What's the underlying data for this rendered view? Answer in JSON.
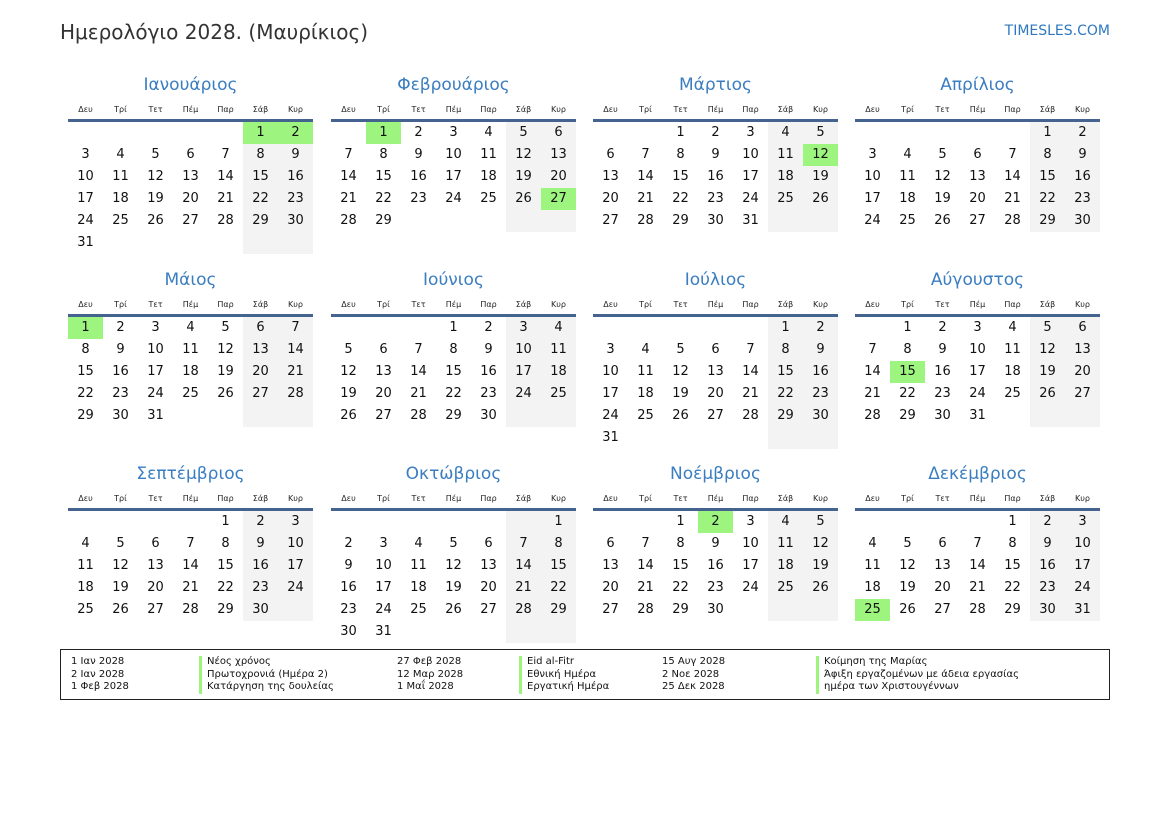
{
  "header": {
    "title": "Ημερολόγιο 2028. (Μαυρίκιος)",
    "site": "TIMESLES.COM"
  },
  "weekdays": [
    "Δευ",
    "Τρί",
    "Τετ",
    "Πέμ",
    "Παρ",
    "Σάβ",
    "Κυρ"
  ],
  "colors": {
    "holiday": "#9df57f",
    "weekend": "#f3f3f3",
    "accent": "#3a7dc0"
  },
  "months": [
    {
      "name": "Ιανουάριος",
      "first_weekday": 6,
      "days": 31,
      "holidays": [
        1,
        2
      ]
    },
    {
      "name": "Φεβρουάριος",
      "first_weekday": 2,
      "days": 29,
      "holidays": [
        1,
        27
      ]
    },
    {
      "name": "Μάρτιος",
      "first_weekday": 3,
      "days": 31,
      "holidays": [
        12
      ]
    },
    {
      "name": "Απρίλιος",
      "first_weekday": 6,
      "days": 30,
      "holidays": []
    },
    {
      "name": "Μάιος",
      "first_weekday": 1,
      "days": 31,
      "holidays": [
        1
      ]
    },
    {
      "name": "Ιούνιος",
      "first_weekday": 4,
      "days": 30,
      "holidays": []
    },
    {
      "name": "Ιούλιος",
      "first_weekday": 6,
      "days": 31,
      "holidays": []
    },
    {
      "name": "Αύγουστος",
      "first_weekday": 2,
      "days": 31,
      "holidays": [
        15
      ]
    },
    {
      "name": "Σεπτέμβριος",
      "first_weekday": 5,
      "days": 30,
      "holidays": []
    },
    {
      "name": "Οκτώβριος",
      "first_weekday": 7,
      "days": 31,
      "holidays": []
    },
    {
      "name": "Νοέμβριος",
      "first_weekday": 3,
      "days": 30,
      "holidays": [
        2
      ]
    },
    {
      "name": "Δεκέμβριος",
      "first_weekday": 5,
      "days": 31,
      "holidays": [
        25
      ]
    }
  ],
  "legend": [
    {
      "date": "1 Ιαν 2028",
      "name": "Νέος χρόνος"
    },
    {
      "date": "2 Ιαν 2028",
      "name": "Πρωτοχρονιά (Ημέρα 2)"
    },
    {
      "date": "1 Φεβ 2028",
      "name": "Κατάργηση της δουλείας"
    },
    {
      "date": "27 Φεβ 2028",
      "name": "Eid al-Fitr"
    },
    {
      "date": "12 Μαρ 2028",
      "name": "Εθνική Ημέρα"
    },
    {
      "date": "1 Μαΐ 2028",
      "name": "Εργατική Ημέρα"
    },
    {
      "date": "15 Αυγ 2028",
      "name": "Κοίμηση της Μαρίας"
    },
    {
      "date": "2 Νοε 2028",
      "name": "Άφιξη εργαζομένων με άδεια εργασίας"
    },
    {
      "date": "25 Δεκ 2028",
      "name": "ημέρα των Χριστουγέννων"
    }
  ]
}
